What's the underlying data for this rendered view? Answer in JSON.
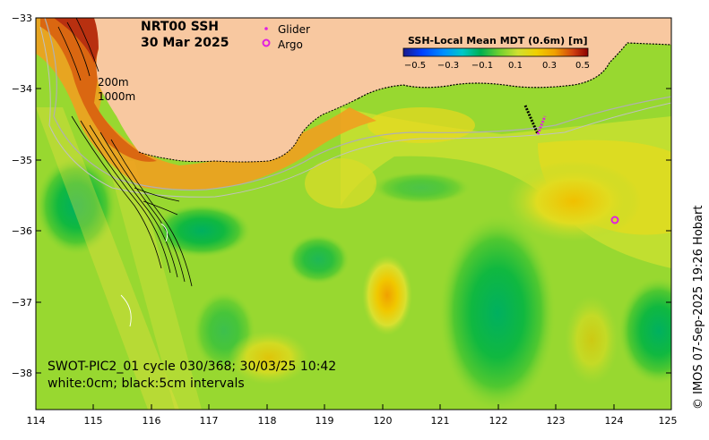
{
  "title": {
    "line1": "NRT00 SSH",
    "line2": "30 Mar 2025"
  },
  "legend": {
    "glider_label": "Glider",
    "argo_label": "Argo",
    "glider_color": "#e020e0",
    "argo_color": "#e020e0"
  },
  "colorbar": {
    "title": "SSH-Local Mean MDT (0.6m) [m]",
    "ticks": [
      "−0.5",
      "−0.3",
      "−0.1",
      "0.1",
      "0.3",
      "0.5"
    ],
    "colors": [
      "#1a1a8c",
      "#0040ff",
      "#0090ff",
      "#00c8c8",
      "#00b050",
      "#40c030",
      "#90d830",
      "#d0e030",
      "#f0d000",
      "#f0a000",
      "#e06010",
      "#c03000",
      "#8c0000"
    ]
  },
  "depth_labels": {
    "shallow": "200m",
    "deep": "1000m"
  },
  "axes": {
    "x_ticks": [
      "114",
      "115",
      "116",
      "117",
      "118",
      "119",
      "120",
      "121",
      "122",
      "123",
      "124",
      "125"
    ],
    "y_ticks": [
      "−33",
      "−34",
      "−35",
      "−36",
      "−37",
      "−38"
    ]
  },
  "caption": {
    "line1": "SWOT-PIC2_01 cycle 030/368; 30/03/25 10:42",
    "line2": "white:0cm; black:5cm intervals"
  },
  "credit": "© IMOS 07-Sep-2025 19:26 Hobart",
  "colors": {
    "land": "#f8c8a0",
    "ocean_base": "#90d830"
  }
}
